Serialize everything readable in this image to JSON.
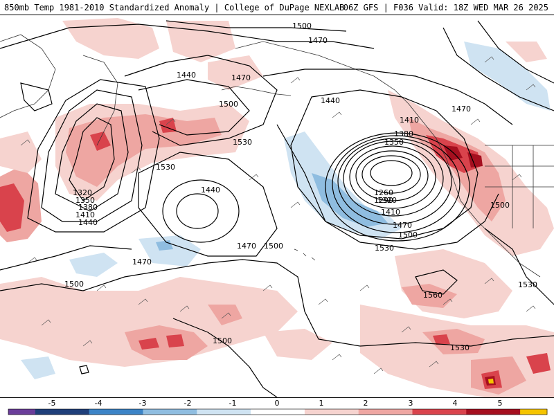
{
  "header": {
    "title": "850mb Temp 1981-2010 Standardized Anomaly | College of DuPage NEXLAB",
    "run_info": "06Z GFS | F036 Valid: 18Z WED MAR 26 2025"
  },
  "colors": {
    "neg5": "#6a3d9a",
    "neg4": "#1f3f7a",
    "neg3": "#3b83c6",
    "neg2": "#8fbde0",
    "neg1": "#cfe3f2",
    "zero": "#ffffff",
    "pos1": "#f6d3cf",
    "pos2": "#eea6a2",
    "pos3": "#d9434c",
    "pos4": "#a50f1f",
    "pos5": "#f5c400",
    "contour": "#000000",
    "coast": "#222222"
  },
  "legend": {
    "ticks": [
      "-5",
      "-4",
      "-3",
      "-2",
      "-1",
      "0",
      "1",
      "2",
      "3",
      "4",
      "5"
    ]
  },
  "contour_labels": [
    {
      "text": "1500",
      "id": "l1"
    },
    {
      "text": "1470",
      "id": "l2"
    },
    {
      "text": "1440",
      "id": "l3"
    },
    {
      "text": "1470",
      "id": "l4"
    },
    {
      "text": "1500",
      "id": "l5"
    },
    {
      "text": "1530",
      "id": "l6"
    },
    {
      "text": "1530",
      "id": "l7"
    },
    {
      "text": "1440",
      "id": "l8"
    },
    {
      "text": "1440",
      "id": "l9"
    },
    {
      "text": "1470",
      "id": "l10"
    },
    {
      "text": "1500",
      "id": "l11"
    },
    {
      "text": "1320",
      "id": "l12"
    },
    {
      "text": "1350",
      "id": "l13"
    },
    {
      "text": "1380",
      "id": "l14"
    },
    {
      "text": "1410",
      "id": "l15"
    },
    {
      "text": "1440",
      "id": "l16"
    },
    {
      "text": "1410",
      "id": "l17"
    },
    {
      "text": "1380",
      "id": "l18"
    },
    {
      "text": "1350",
      "id": "l19"
    },
    {
      "text": "1260",
      "id": "l20"
    },
    {
      "text": "1290",
      "id": "l21"
    },
    {
      "text": "1320",
      "id": "l22"
    },
    {
      "text": "1410",
      "id": "l23"
    },
    {
      "text": "1470",
      "id": "l24"
    },
    {
      "text": "1500",
      "id": "l25"
    },
    {
      "text": "1530",
      "id": "l26"
    },
    {
      "text": "1470",
      "id": "l27"
    },
    {
      "text": "1470",
      "id": "l28"
    },
    {
      "text": "1500",
      "id": "l29"
    },
    {
      "text": "1500",
      "id": "l30"
    },
    {
      "text": "1500",
      "id": "l31"
    },
    {
      "text": "1560",
      "id": "l32"
    },
    {
      "text": "1530",
      "id": "l33"
    },
    {
      "text": "1530",
      "id": "l34"
    },
    {
      "text": "1500",
      "id": "l35"
    }
  ]
}
